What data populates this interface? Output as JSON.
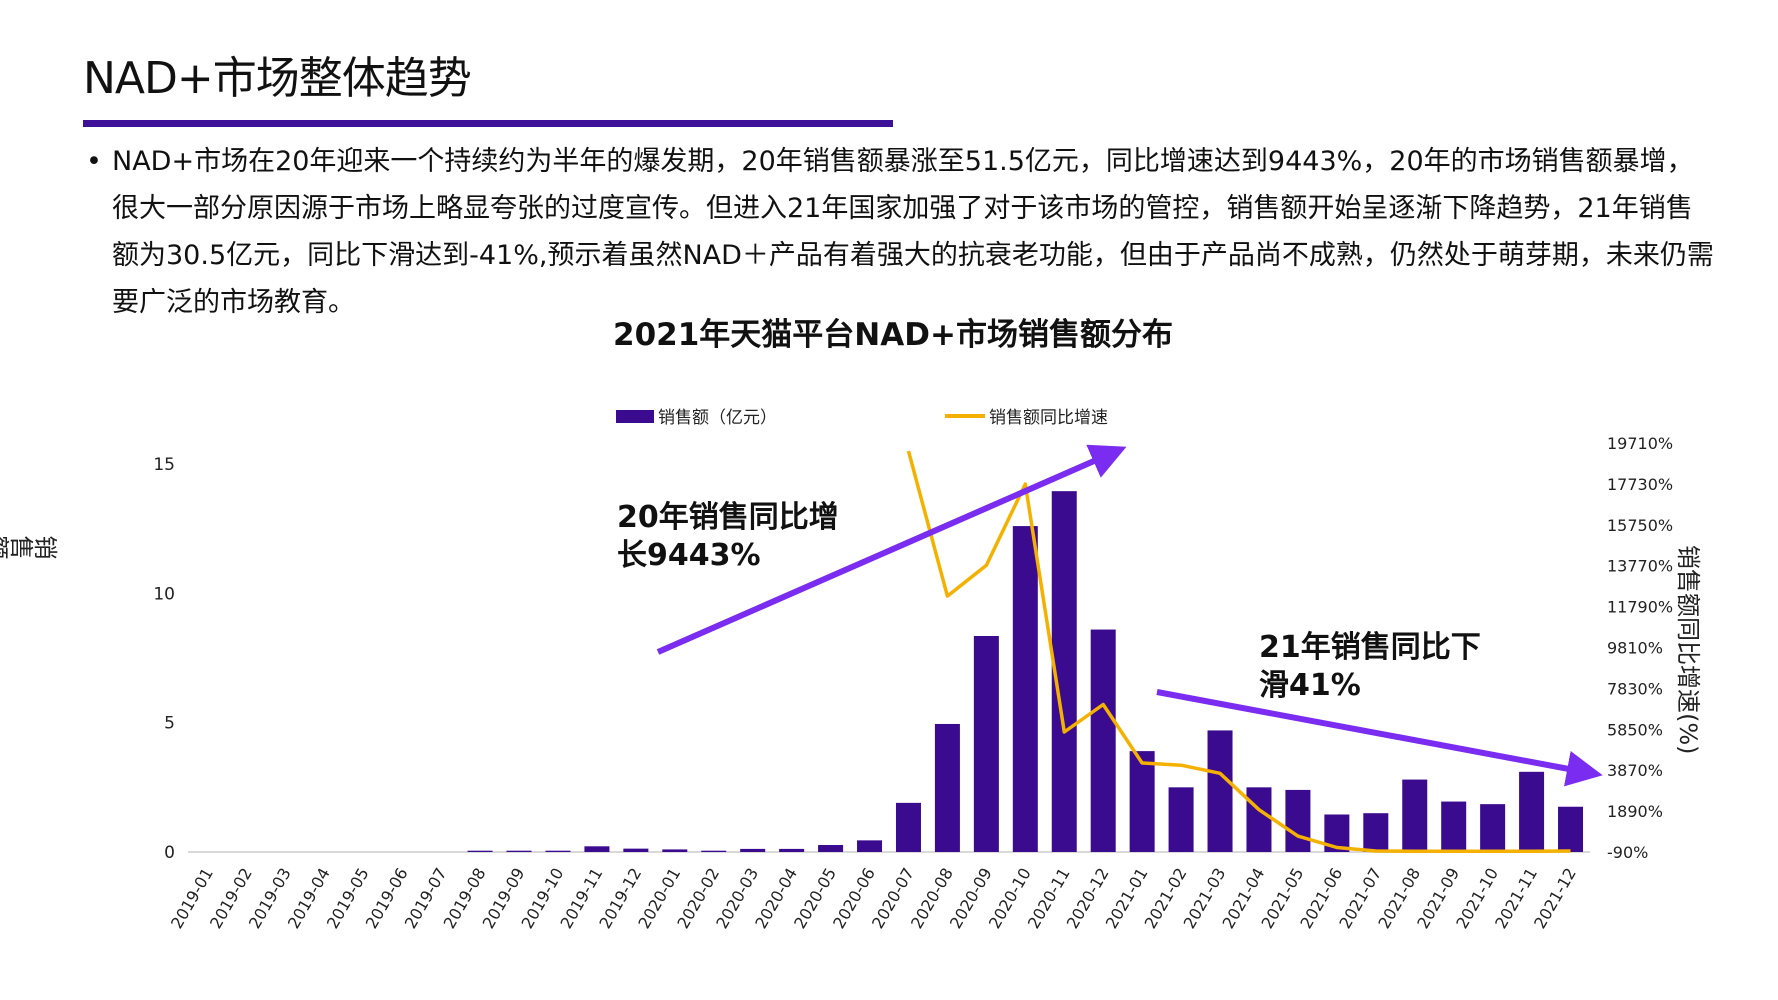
{
  "header": {
    "title": "NAD+市场整体趋势"
  },
  "body": {
    "bullet": "•",
    "text": "NAD+市场在20年迎来一个持续约为半年的爆发期，20年销售额暴涨至51.5亿元，同比增速达到9443%，20年的市场销售额暴增，很大一部分原因源于市场上略显夸张的过度宣传。但进入21年国家加强了对于该市场的管控，销售额开始呈逐渐下降趋势，21年销售额为30.5亿元，同比下滑达到-41%,预示着虽然NAD＋产品有着强大的抗衰老功能，但由于产品尚不成熟，仍然处于萌芽期，未来仍需要广泛的市场教育。"
  },
  "colors": {
    "bar": "#3a0a8f",
    "line": "#f5b100",
    "arrow": "#7a2cf0",
    "rule": "#3d1299"
  },
  "chart_data": {
    "type": "bar+line",
    "title": "2021年天猫平台NAD+市场销售额分布",
    "categories": [
      "2019-01",
      "2019-02",
      "2019-03",
      "2019-04",
      "2019-05",
      "2019-06",
      "2019-07",
      "2019-08",
      "2019-09",
      "2019-10",
      "2019-11",
      "2019-12",
      "2020-01",
      "2020-02",
      "2020-03",
      "2020-04",
      "2020-05",
      "2020-06",
      "2020-07",
      "2020-08",
      "2020-09",
      "2020-10",
      "2020-11",
      "2020-12",
      "2021-01",
      "2021-02",
      "2021-03",
      "2021-04",
      "2021-05",
      "2021-06",
      "2021-07",
      "2021-08",
      "2021-09",
      "2021-10",
      "2021-11",
      "2021-12"
    ],
    "series": [
      {
        "name": "销售额（亿元）",
        "axis": "left",
        "kind": "bar",
        "values": [
          0,
          0,
          0,
          0,
          0,
          0,
          0,
          0.05,
          0.05,
          0.05,
          0.22,
          0.13,
          0.1,
          0.05,
          0.12,
          0.12,
          0.27,
          0.45,
          1.9,
          4.95,
          8.35,
          12.6,
          13.95,
          8.6,
          3.9,
          2.5,
          4.7,
          2.5,
          2.4,
          1.45,
          1.5,
          2.8,
          1.95,
          1.85,
          3.1,
          1.75
        ]
      },
      {
        "name": "销售额同比增速",
        "axis": "right",
        "kind": "line",
        "values": [
          null,
          null,
          null,
          null,
          null,
          null,
          null,
          null,
          null,
          null,
          null,
          null,
          null,
          null,
          null,
          null,
          null,
          null,
          19320,
          12300,
          13790,
          17720,
          5720,
          7050,
          4220,
          4110,
          3720,
          1960,
          680,
          130,
          -40,
          -50,
          -50,
          -55,
          -50,
          -41
        ]
      }
    ],
    "ylabel": "销售额 · 亿元",
    "ylim": [
      0,
      15
    ],
    "yticks": [
      "0",
      "5",
      "10",
      "15"
    ],
    "y2label": "销售额同比增速(%)",
    "y2lim": [
      -90,
      19710
    ],
    "y2ticks": [
      "-90%",
      "1890%",
      "3870%",
      "5850%",
      "7830%",
      "9810%",
      "11790%",
      "13770%",
      "15750%",
      "17730%",
      "19710%"
    ],
    "legend": "top",
    "annotations": [
      {
        "line1": "20年销售同比增",
        "line2": "长9443%"
      },
      {
        "line1": "21年销售同比下",
        "line2": "滑41%"
      }
    ]
  }
}
